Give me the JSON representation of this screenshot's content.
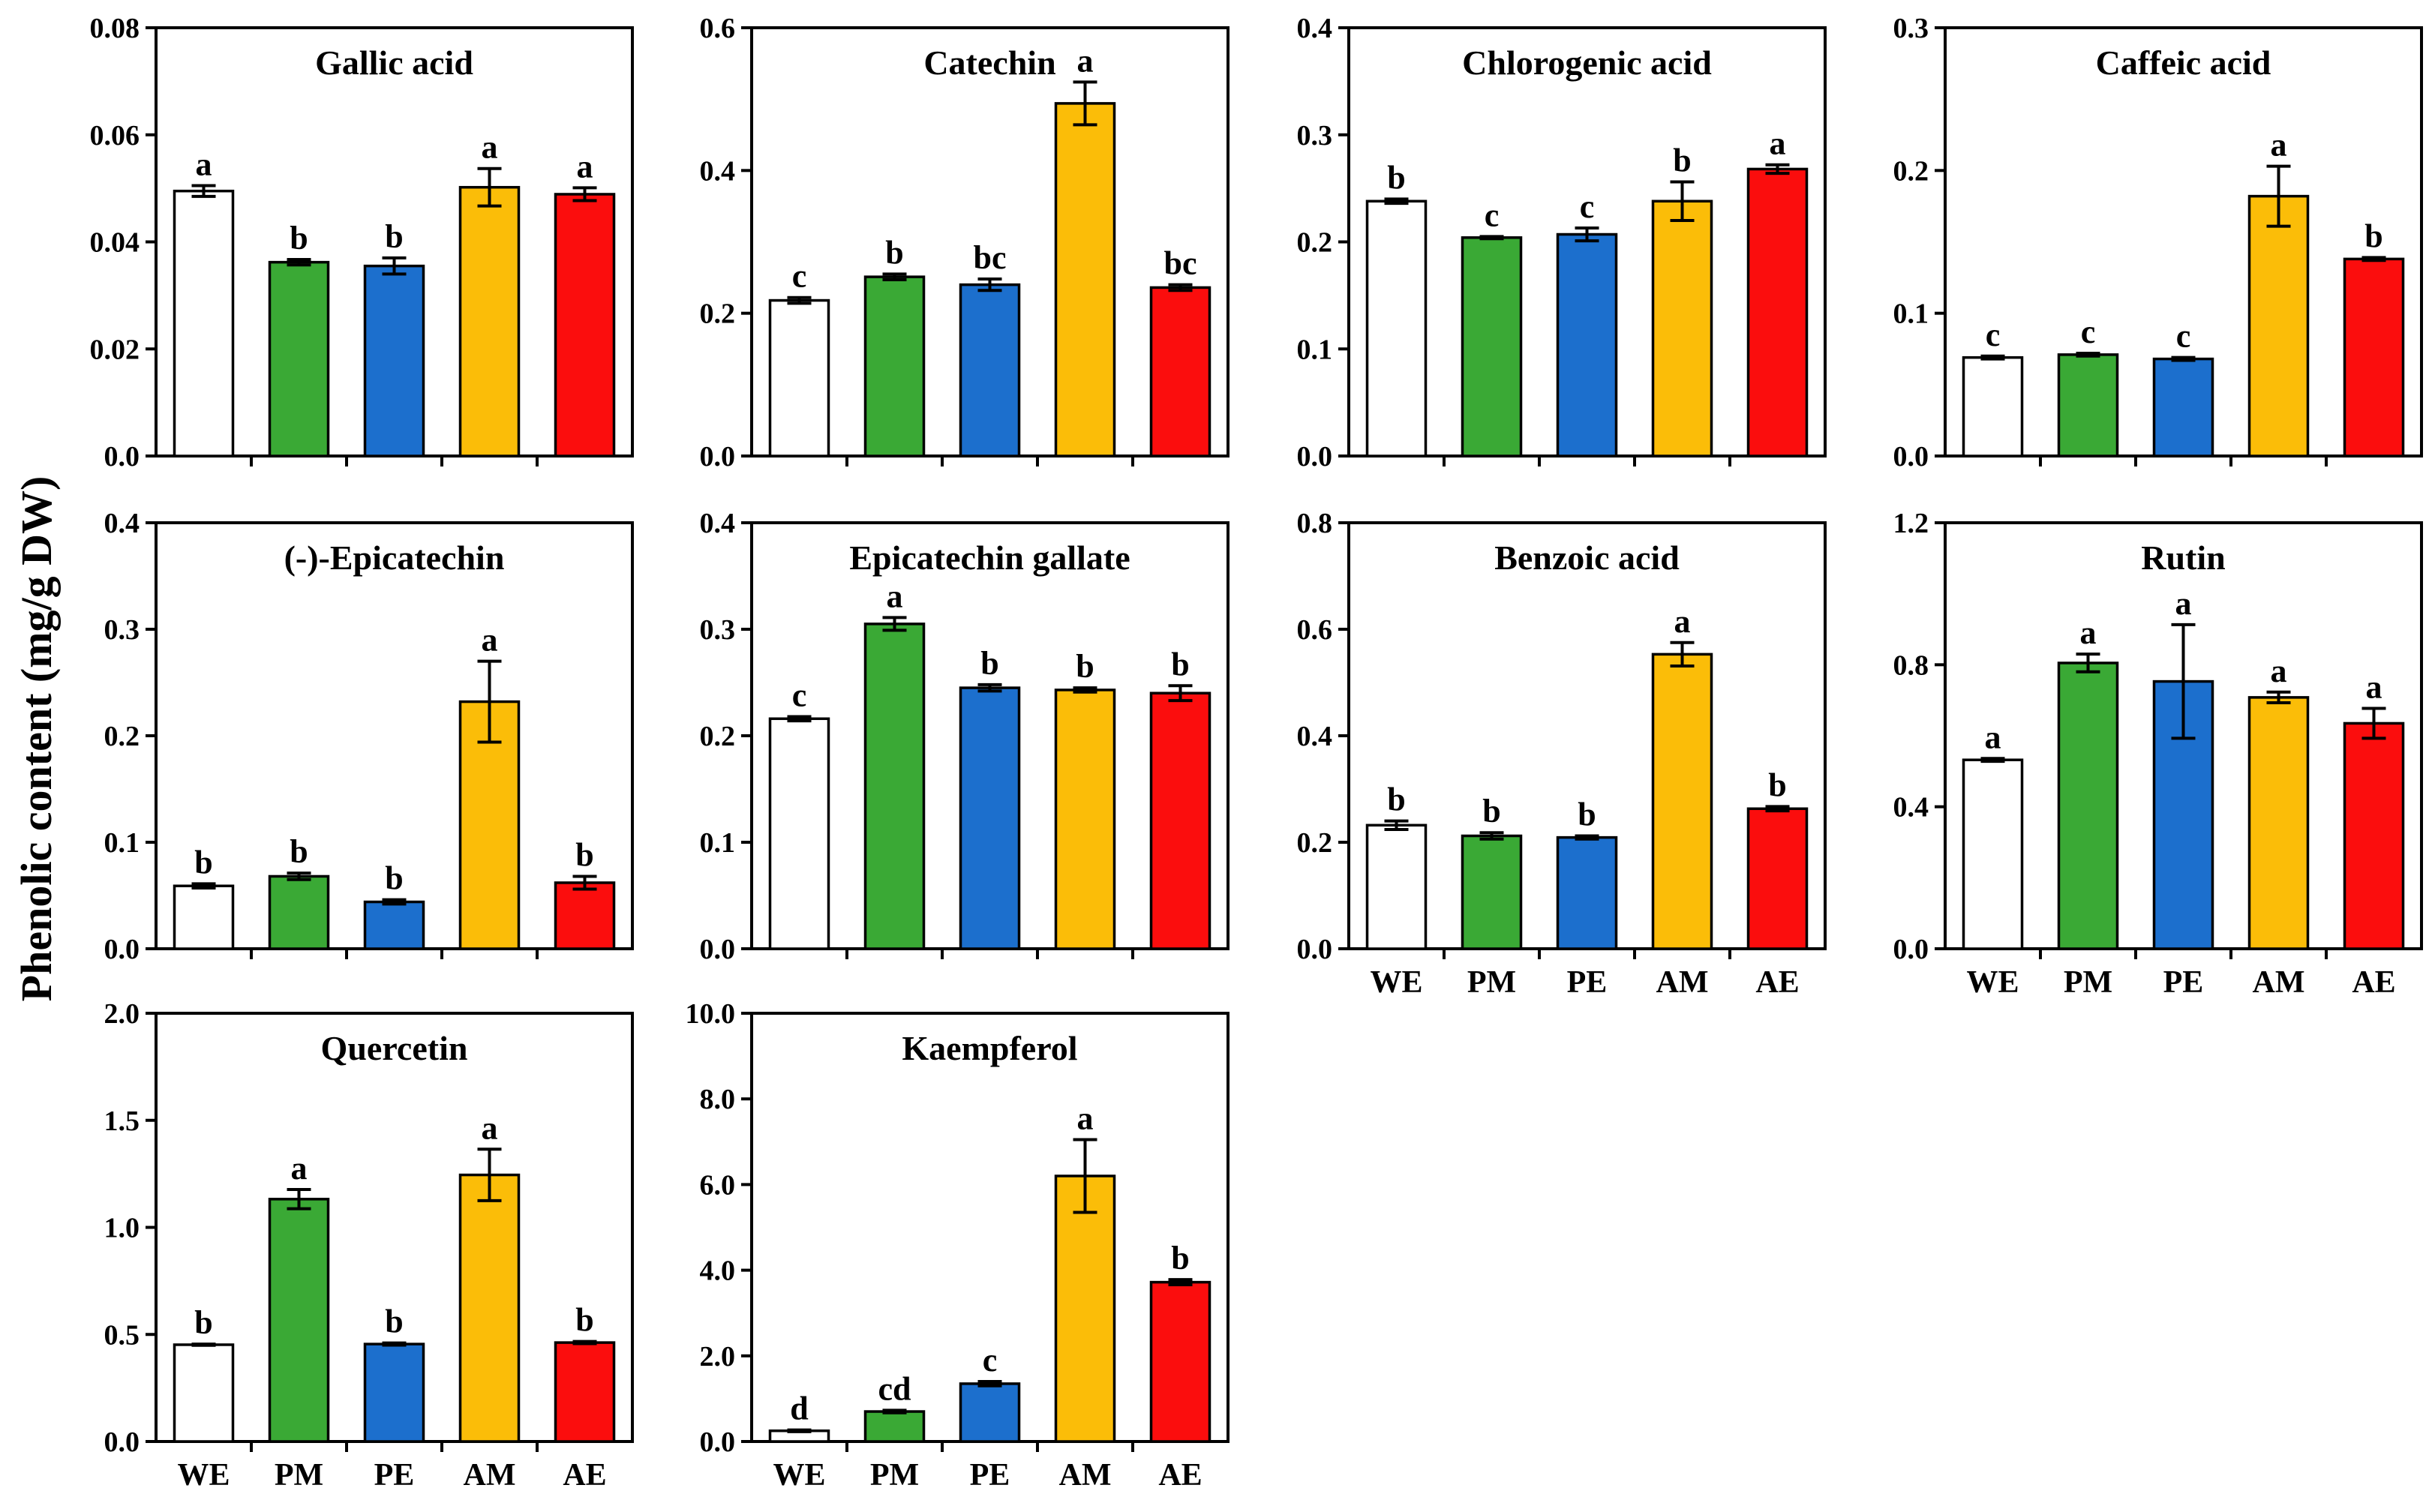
{
  "figure": {
    "ylabel": "Phenolic content (mg/g DW)",
    "categories": [
      "WE",
      "PM",
      "PE",
      "AM",
      "AE"
    ],
    "colors": {
      "WE": "#ffffff",
      "PM": "#3aa935",
      "PE": "#1c6fcd",
      "AM": "#fbbd08",
      "AE": "#fb0d0d"
    }
  },
  "chart_data": [
    {
      "type": "bar",
      "title": "Gallic acid",
      "categories": [
        "WE",
        "PM",
        "PE",
        "AM",
        "AE"
      ],
      "values": [
        0.0495,
        0.0362,
        0.0355,
        0.0502,
        0.0489
      ],
      "errors": [
        0.001,
        0.0005,
        0.0015,
        0.0035,
        0.0012
      ],
      "letters": [
        "a",
        "b",
        "b",
        "a",
        "a"
      ],
      "ylim": [
        0,
        0.08
      ],
      "yticks": [
        "0.0",
        "0.02",
        "0.04",
        "0.06",
        "0.08"
      ],
      "xlabels_shown": false
    },
    {
      "type": "bar",
      "title": "Catechin",
      "categories": [
        "WE",
        "PM",
        "PE",
        "AM",
        "AE"
      ],
      "values": [
        0.218,
        0.251,
        0.24,
        0.494,
        0.236
      ],
      "errors": [
        0.004,
        0.004,
        0.008,
        0.03,
        0.004
      ],
      "letters": [
        "c",
        "b",
        "bc",
        "a",
        "bc"
      ],
      "ylim": [
        0,
        0.6
      ],
      "yticks": [
        "0.0",
        "0.2",
        "0.4",
        "0.6"
      ],
      "xlabels_shown": false
    },
    {
      "type": "bar",
      "title": "Chlorogenic acid",
      "categories": [
        "WE",
        "PM",
        "PE",
        "AM",
        "AE"
      ],
      "values": [
        0.238,
        0.204,
        0.207,
        0.238,
        0.268
      ],
      "errors": [
        0.002,
        0.001,
        0.006,
        0.018,
        0.004
      ],
      "letters": [
        "b",
        "c",
        "c",
        "b",
        "a"
      ],
      "ylim": [
        0,
        0.4
      ],
      "yticks": [
        "0.0",
        "0.1",
        "0.2",
        "0.3",
        "0.4"
      ],
      "xlabels_shown": false
    },
    {
      "type": "bar",
      "title": "Caffeic acid",
      "categories": [
        "WE",
        "PM",
        "PE",
        "AM",
        "AE"
      ],
      "values": [
        0.069,
        0.071,
        0.068,
        0.182,
        0.138
      ],
      "errors": [
        0.001,
        0.001,
        0.001,
        0.021,
        0.001
      ],
      "letters": [
        "c",
        "c",
        "c",
        "a",
        "b"
      ],
      "ylim": [
        0,
        0.3
      ],
      "yticks": [
        "0.0",
        "0.1",
        "0.2",
        "0.3"
      ],
      "xlabels_shown": false
    },
    {
      "type": "bar",
      "title": "(-)-Epicatechin",
      "categories": [
        "WE",
        "PM",
        "PE",
        "AM",
        "AE"
      ],
      "values": [
        0.059,
        0.068,
        0.044,
        0.232,
        0.062
      ],
      "errors": [
        0.002,
        0.003,
        0.002,
        0.038,
        0.006
      ],
      "letters": [
        "b",
        "b",
        "b",
        "a",
        "b"
      ],
      "ylim": [
        0,
        0.4
      ],
      "yticks": [
        "0.0",
        "0.1",
        "0.2",
        "0.3",
        "0.4"
      ],
      "xlabels_shown": false
    },
    {
      "type": "bar",
      "title": "Epicatechin gallate",
      "categories": [
        "WE",
        "PM",
        "PE",
        "AM",
        "AE"
      ],
      "values": [
        0.216,
        0.305,
        0.245,
        0.243,
        0.24
      ],
      "errors": [
        0.002,
        0.006,
        0.003,
        0.002,
        0.007
      ],
      "letters": [
        "c",
        "a",
        "b",
        "b",
        "b"
      ],
      "ylim": [
        0,
        0.4
      ],
      "yticks": [
        "0.0",
        "0.1",
        "0.2",
        "0.3",
        "0.4"
      ],
      "xlabels_shown": false
    },
    {
      "type": "bar",
      "title": "Benzoic acid",
      "categories": [
        "WE",
        "PM",
        "PE",
        "AM",
        "AE"
      ],
      "values": [
        0.232,
        0.212,
        0.209,
        0.553,
        0.263
      ],
      "errors": [
        0.008,
        0.006,
        0.003,
        0.022,
        0.004
      ],
      "letters": [
        "b",
        "b",
        "b",
        "a",
        "b"
      ],
      "ylim": [
        0,
        0.8
      ],
      "yticks": [
        "0.0",
        "0.2",
        "0.4",
        "0.6",
        "0.8"
      ],
      "xlabels_shown": true
    },
    {
      "type": "bar",
      "title": "Rutin",
      "categories": [
        "WE",
        "PM",
        "PE",
        "AM",
        "AE"
      ],
      "values": [
        0.532,
        0.805,
        0.753,
        0.708,
        0.635
      ],
      "errors": [
        0.004,
        0.025,
        0.16,
        0.015,
        0.042
      ],
      "letters": [
        "a",
        "a",
        "a",
        "a",
        "a"
      ],
      "ylim": [
        0,
        1.2
      ],
      "yticks": [
        "0.0",
        "0.4",
        "0.8",
        "1.2"
      ],
      "xlabels_shown": true
    },
    {
      "type": "bar",
      "title": "Quercetin",
      "categories": [
        "WE",
        "PM",
        "PE",
        "AM",
        "AE"
      ],
      "values": [
        0.452,
        1.132,
        0.455,
        1.245,
        0.462
      ],
      "errors": [
        0.003,
        0.045,
        0.005,
        0.12,
        0.005
      ],
      "letters": [
        "b",
        "a",
        "b",
        "a",
        "b"
      ],
      "ylim": [
        0,
        2.0
      ],
      "yticks": [
        "0.0",
        "0.5",
        "1.0",
        "1.5",
        "2.0"
      ],
      "xlabels_shown": true
    },
    {
      "type": "bar",
      "title": "Kaempferol",
      "categories": [
        "WE",
        "PM",
        "PE",
        "AM",
        "AE"
      ],
      "values": [
        0.25,
        0.7,
        1.35,
        6.2,
        3.72
      ],
      "errors": [
        0.02,
        0.03,
        0.05,
        0.85,
        0.06
      ],
      "letters": [
        "d",
        "cd",
        "c",
        "a",
        "b"
      ],
      "ylim": [
        0,
        10.0
      ],
      "yticks": [
        "0.0",
        "2.0",
        "4.0",
        "6.0",
        "8.0",
        "10.0"
      ],
      "xlabels_shown": true
    }
  ]
}
